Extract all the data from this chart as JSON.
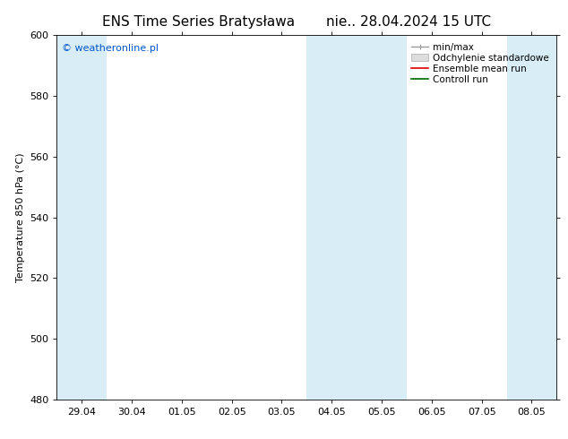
{
  "title_left": "ENS Time Series Bratysława",
  "title_right": "nie.. 28.04.2024 15 UTC",
  "ylabel": "Temperature 850 hPa (°C)",
  "ylim": [
    480,
    600
  ],
  "yticks": [
    480,
    500,
    520,
    540,
    560,
    580,
    600
  ],
  "xlabel_ticks": [
    "29.04",
    "30.04",
    "01.05",
    "02.05",
    "03.05",
    "04.05",
    "05.05",
    "06.05",
    "07.05",
    "08.05"
  ],
  "background_color": "#ffffff",
  "plot_bg_color": "#ffffff",
  "band_color": "#d9edf7",
  "watermark_text": "© weatheronline.pl",
  "watermark_color": "#0055cc",
  "border_color": "#000000",
  "tick_color": "#000000",
  "font_size_title": 11,
  "font_size_axis": 8,
  "font_size_tick": 8,
  "font_size_watermark": 8,
  "font_size_legend": 7.5,
  "legend_gray_line": "#999999",
  "legend_gray_fill": "#cccccc",
  "legend_red": "#dd0000",
  "legend_green": "#006600"
}
